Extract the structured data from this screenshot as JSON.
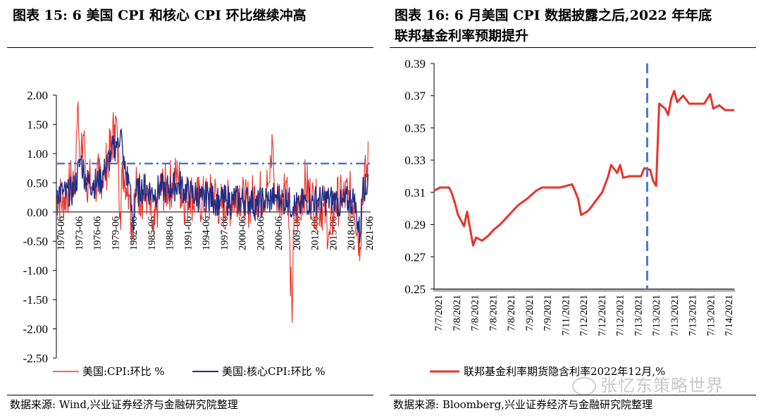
{
  "left": {
    "title": "图表 15:  6 美国 CPI 和核心 CPI 环比继续冲高",
    "source": "数据来源:  Wind,兴业证券经济与金融研究院整理",
    "chart_data": {
      "type": "line",
      "ylim": [
        -2.5,
        2.0
      ],
      "yticks": [
        "2.00",
        "1.50",
        "1.00",
        "0.50",
        "0.00",
        "-0.50",
        "-1.00",
        "-1.50",
        "-2.00",
        "-2.50"
      ],
      "yvalues": [
        2.0,
        1.5,
        1.0,
        0.5,
        0.0,
        -0.5,
        -1.0,
        -1.5,
        -2.0,
        -2.5
      ],
      "xticks": [
        "1970-06",
        "1973-06",
        "1976-06",
        "1979-06",
        "1982-06",
        "1985-06",
        "1988-06",
        "1991-06",
        "1994-06",
        "1997-06",
        "2000-06",
        "2003-06",
        "2006-06",
        "2009-06",
        "2012-06",
        "2015-06",
        "2018-06",
        "2021-06"
      ],
      "xrange": [
        1970.0,
        2021.5
      ],
      "reference_line": 0.83,
      "series": [
        {
          "name": "美国:CPI:环比 %",
          "color": "#e8332b",
          "key": "cpi"
        },
        {
          "name": "美国:核心CPI:环比 %",
          "color": "#1f2d86",
          "key": "core"
        }
      ],
      "cpi_points": [
        [
          1970.0,
          0.3
        ],
        [
          1971.0,
          0.2
        ],
        [
          1972.0,
          0.4
        ],
        [
          1973.0,
          0.6
        ],
        [
          1973.5,
          1.8
        ],
        [
          1974.0,
          0.9
        ],
        [
          1974.5,
          1.3
        ],
        [
          1975.0,
          0.6
        ],
        [
          1976.0,
          0.4
        ],
        [
          1977.0,
          0.6
        ],
        [
          1978.0,
          0.7
        ],
        [
          1979.0,
          1.1
        ],
        [
          1979.6,
          1.5
        ],
        [
          1980.0,
          1.4
        ],
        [
          1980.5,
          0.0
        ],
        [
          1981.0,
          0.8
        ],
        [
          1982.0,
          0.3
        ],
        [
          1982.5,
          -0.3
        ],
        [
          1983.0,
          0.4
        ],
        [
          1984.0,
          0.3
        ],
        [
          1985.0,
          0.3
        ],
        [
          1986.0,
          -0.4
        ],
        [
          1987.0,
          0.4
        ],
        [
          1988.0,
          0.4
        ],
        [
          1989.0,
          0.5
        ],
        [
          1990.0,
          0.6
        ],
        [
          1991.0,
          0.2
        ],
        [
          1992.0,
          0.3
        ],
        [
          1993.0,
          0.2
        ],
        [
          1994.0,
          0.2
        ],
        [
          1995.0,
          0.2
        ],
        [
          1996.0,
          0.3
        ],
        [
          1997.0,
          0.1
        ],
        [
          1998.0,
          0.1
        ],
        [
          1999.0,
          0.2
        ],
        [
          2000.0,
          0.4
        ],
        [
          2001.0,
          0.1
        ],
        [
          2002.0,
          0.2
        ],
        [
          2003.0,
          0.3
        ],
        [
          2004.0,
          0.3
        ],
        [
          2005.0,
          0.5
        ],
        [
          2005.6,
          1.2
        ],
        [
          2006.0,
          0.2
        ],
        [
          2007.0,
          0.3
        ],
        [
          2008.0,
          0.6
        ],
        [
          2008.8,
          -1.9
        ],
        [
          2009.0,
          -0.3
        ],
        [
          2010.0,
          0.1
        ],
        [
          2011.0,
          0.5
        ],
        [
          2012.0,
          0.2
        ],
        [
          2013.0,
          0.1
        ],
        [
          2014.0,
          0.1
        ],
        [
          2015.0,
          -0.4
        ],
        [
          2016.0,
          0.2
        ],
        [
          2017.0,
          0.2
        ],
        [
          2018.0,
          0.3
        ],
        [
          2019.0,
          0.2
        ],
        [
          2020.0,
          -0.6
        ],
        [
          2020.5,
          0.5
        ],
        [
          2021.0,
          0.6
        ],
        [
          2021.4,
          0.9
        ]
      ],
      "core_points": [
        [
          1970.0,
          0.4
        ],
        [
          1971.0,
          0.3
        ],
        [
          1972.0,
          0.3
        ],
        [
          1973.0,
          0.4
        ],
        [
          1974.0,
          0.9
        ],
        [
          1975.0,
          0.5
        ],
        [
          1976.0,
          0.5
        ],
        [
          1977.0,
          0.5
        ],
        [
          1978.0,
          0.7
        ],
        [
          1979.0,
          1.0
        ],
        [
          1980.0,
          1.2
        ],
        [
          1980.6,
          1.4
        ],
        [
          1981.0,
          0.8
        ],
        [
          1982.0,
          0.5
        ],
        [
          1982.6,
          -0.3
        ],
        [
          1983.0,
          0.3
        ],
        [
          1984.0,
          0.4
        ],
        [
          1985.0,
          0.4
        ],
        [
          1986.0,
          0.3
        ],
        [
          1987.0,
          0.4
        ],
        [
          1988.0,
          0.4
        ],
        [
          1989.0,
          0.4
        ],
        [
          1990.0,
          0.5
        ],
        [
          1991.0,
          0.4
        ],
        [
          1992.0,
          0.3
        ],
        [
          1993.0,
          0.3
        ],
        [
          1994.0,
          0.2
        ],
        [
          1995.0,
          0.3
        ],
        [
          1996.0,
          0.2
        ],
        [
          1997.0,
          0.2
        ],
        [
          1998.0,
          0.2
        ],
        [
          1999.0,
          0.2
        ],
        [
          2000.0,
          0.2
        ],
        [
          2001.0,
          0.2
        ],
        [
          2002.0,
          0.2
        ],
        [
          2003.0,
          0.1
        ],
        [
          2004.0,
          0.2
        ],
        [
          2005.0,
          0.2
        ],
        [
          2006.0,
          0.3
        ],
        [
          2007.0,
          0.2
        ],
        [
          2008.0,
          0.2
        ],
        [
          2009.0,
          0.1
        ],
        [
          2010.0,
          0.1
        ],
        [
          2011.0,
          0.2
        ],
        [
          2012.0,
          0.2
        ],
        [
          2013.0,
          0.2
        ],
        [
          2014.0,
          0.2
        ],
        [
          2015.0,
          0.2
        ],
        [
          2016.0,
          0.2
        ],
        [
          2017.0,
          0.1
        ],
        [
          2018.0,
          0.2
        ],
        [
          2019.0,
          0.2
        ],
        [
          2020.0,
          -0.4
        ],
        [
          2020.5,
          0.6
        ],
        [
          2021.0,
          0.3
        ],
        [
          2021.4,
          0.8
        ]
      ]
    }
  },
  "right": {
    "title_line1": "图表 16:  6 月美国 CPI 数据披露之后,2022 年年底",
    "title_line2": "联邦基金利率预期提升",
    "source": "数据来源:  Bloomberg,兴业证券经济与金融研究院整理",
    "chart_data": {
      "type": "line",
      "ylim": [
        0.25,
        0.39
      ],
      "yticks": [
        "0.39",
        "0.37",
        "0.35",
        "0.33",
        "0.31",
        "0.29",
        "0.27",
        "0.25"
      ],
      "yvalues": [
        0.39,
        0.37,
        0.35,
        0.33,
        0.31,
        0.29,
        0.27,
        0.25
      ],
      "xticks": [
        "7/7/2021",
        "7/8/2021",
        "7/8/2021",
        "7/8/2021",
        "7/8/2021",
        "7/9/2021",
        "7/9/2021",
        "7/11/2021",
        "7/12/2021",
        "7/12/2021",
        "7/12/2021",
        "7/13/2021",
        "7/13/2021",
        "7/13/2021",
        "7/13/2021",
        "7/13/2021",
        "7/14/2021"
      ],
      "vline_fraction": 0.71,
      "series": [
        {
          "name": "联邦基金利率期货隐含利率2022年12月,%",
          "color": "#e8332b"
        }
      ],
      "points": [
        [
          0.0,
          0.311
        ],
        [
          0.02,
          0.313
        ],
        [
          0.05,
          0.313
        ],
        [
          0.06,
          0.309
        ],
        [
          0.07,
          0.303
        ],
        [
          0.08,
          0.296
        ],
        [
          0.1,
          0.289
        ],
        [
          0.11,
          0.298
        ],
        [
          0.13,
          0.277
        ],
        [
          0.14,
          0.282
        ],
        [
          0.16,
          0.28
        ],
        [
          0.18,
          0.283
        ],
        [
          0.2,
          0.287
        ],
        [
          0.22,
          0.29
        ],
        [
          0.25,
          0.296
        ],
        [
          0.28,
          0.302
        ],
        [
          0.31,
          0.306
        ],
        [
          0.34,
          0.311
        ],
        [
          0.36,
          0.313
        ],
        [
          0.42,
          0.313
        ],
        [
          0.46,
          0.315
        ],
        [
          0.48,
          0.306
        ],
        [
          0.49,
          0.296
        ],
        [
          0.51,
          0.298
        ],
        [
          0.52,
          0.3
        ],
        [
          0.54,
          0.305
        ],
        [
          0.56,
          0.31
        ],
        [
          0.58,
          0.32
        ],
        [
          0.59,
          0.327
        ],
        [
          0.61,
          0.322
        ],
        [
          0.62,
          0.327
        ],
        [
          0.63,
          0.319
        ],
        [
          0.65,
          0.32
        ],
        [
          0.69,
          0.32
        ],
        [
          0.7,
          0.325
        ],
        [
          0.72,
          0.324
        ],
        [
          0.73,
          0.317
        ],
        [
          0.74,
          0.314
        ],
        [
          0.75,
          0.365
        ],
        [
          0.77,
          0.362
        ],
        [
          0.78,
          0.358
        ],
        [
          0.79,
          0.368
        ],
        [
          0.8,
          0.373
        ],
        [
          0.81,
          0.366
        ],
        [
          0.83,
          0.37
        ],
        [
          0.85,
          0.365
        ],
        [
          0.87,
          0.365
        ],
        [
          0.9,
          0.365
        ],
        [
          0.92,
          0.371
        ],
        [
          0.93,
          0.362
        ],
        [
          0.95,
          0.364
        ],
        [
          0.97,
          0.361
        ],
        [
          1.0,
          0.361
        ]
      ]
    }
  },
  "watermark": "张忆东策略世界"
}
